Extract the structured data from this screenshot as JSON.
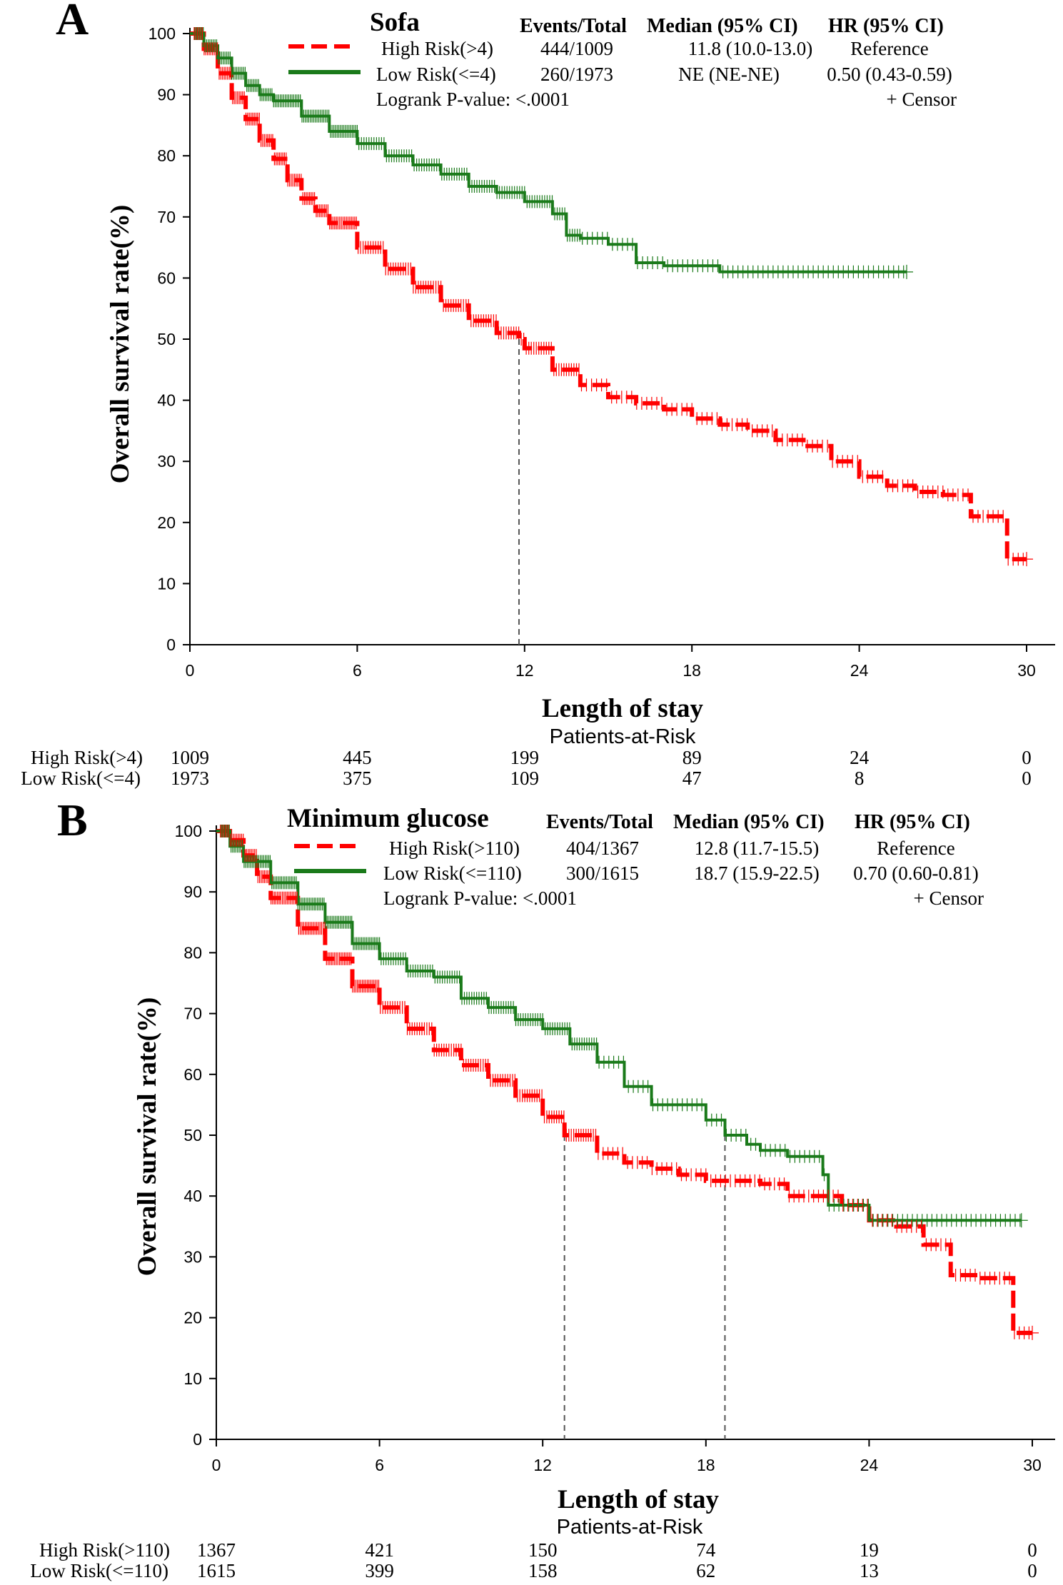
{
  "chart_data": [
    {
      "type": "line",
      "panel_letter": "A",
      "title": "Sofa",
      "xlabel": "Length of stay",
      "ylabel": "Overall survival rate(%)",
      "xlim": [
        0,
        30
      ],
      "ylim": [
        0,
        100
      ],
      "x_ticks": [
        "0",
        "6",
        "12",
        "18",
        "24",
        "30"
      ],
      "y_ticks": [
        "0",
        "10",
        "20",
        "30",
        "40",
        "50",
        "60",
        "70",
        "80",
        "90",
        "100"
      ],
      "legend": {
        "headers": {
          "events": "Events/Total",
          "median": "Median (95% CI)",
          "hr": "HR (95% CI)"
        },
        "logrank": "Logrank P-value: <.0001",
        "censor": "+ Censor"
      },
      "median_lines": [
        11.8
      ],
      "series": [
        {
          "name": "High Risk(>4)",
          "color": "#ff0000",
          "style": "dashed",
          "events_total": "444/1009",
          "median": "11.8 (10.0-13.0)",
          "hr": "Reference",
          "x": [
            0,
            0.5,
            1,
            1.5,
            2,
            2.5,
            3,
            3.5,
            4,
            4.5,
            5,
            6,
            7,
            8,
            9,
            10,
            11,
            11.8,
            12,
            13,
            14,
            15,
            16,
            17,
            18,
            19,
            20,
            21,
            22,
            23,
            24,
            25,
            26,
            27,
            28,
            29,
            29.3,
            30
          ],
          "y": [
            100,
            97.5,
            93.5,
            89.5,
            86,
            82.5,
            79.5,
            76,
            73,
            71,
            69,
            65,
            61.5,
            58.5,
            55.5,
            53,
            51,
            50,
            48.5,
            45,
            42.5,
            40.5,
            39.5,
            38.5,
            37,
            36,
            35,
            33.5,
            32.5,
            30,
            27.5,
            26,
            25,
            24.5,
            21,
            21,
            14,
            14
          ]
        },
        {
          "name": "Low Risk(<=4)",
          "color": "#1a7a1a",
          "style": "solid",
          "events_total": "260/1973",
          "median": "NE (NE-NE)",
          "hr": "0.50 (0.43-0.59)",
          "x": [
            0,
            0.5,
            1,
            1.5,
            2,
            2.5,
            3,
            4,
            5,
            6,
            7,
            8,
            9,
            10,
            11,
            12,
            13,
            13.5,
            14,
            15,
            16,
            17,
            18,
            19,
            20,
            22,
            24,
            25.7
          ],
          "y": [
            100,
            98,
            96,
            93.5,
            91.5,
            90,
            89,
            86.5,
            84,
            82,
            80,
            78.5,
            77,
            75,
            74,
            72.5,
            70.5,
            67,
            66.5,
            65.5,
            62.5,
            62,
            62,
            61,
            61,
            61,
            61,
            61
          ]
        }
      ],
      "at_risk": {
        "title": "Patients-at-Risk",
        "rows": [
          {
            "label": "High Risk(>4)",
            "values": [
              "1009",
              "445",
              "199",
              "89",
              "24",
              "0"
            ]
          },
          {
            "label": "Low Risk(<=4)",
            "values": [
              "1973",
              "375",
              "109",
              "47",
              "8",
              "0"
            ]
          }
        ]
      }
    },
    {
      "type": "line",
      "panel_letter": "B",
      "title": "Minimum glucose",
      "xlabel": "Length of stay",
      "ylabel": "Overall survival rate(%)",
      "xlim": [
        0,
        30
      ],
      "ylim": [
        0,
        100
      ],
      "x_ticks": [
        "0",
        "6",
        "12",
        "18",
        "24",
        "30"
      ],
      "y_ticks": [
        "0",
        "10",
        "20",
        "30",
        "40",
        "50",
        "60",
        "70",
        "80",
        "90",
        "100"
      ],
      "legend": {
        "headers": {
          "events": "Events/Total",
          "median": "Median (95% CI)",
          "hr": "HR (95% CI)"
        },
        "logrank": "Logrank P-value: <.0001",
        "censor": "+ Censor"
      },
      "median_lines": [
        12.8,
        18.7
      ],
      "series": [
        {
          "name": "High Risk(>110)",
          "color": "#ff0000",
          "style": "dashed",
          "events_total": "404/1367",
          "median": "12.8 (11.7-15.5)",
          "hr": "Reference",
          "x": [
            0,
            0.5,
            1,
            1.5,
            2,
            3,
            4,
            5,
            6,
            7,
            8,
            9,
            10,
            11,
            12,
            12.8,
            14,
            15,
            16,
            17,
            18,
            19,
            20,
            21,
            22,
            23,
            24,
            25,
            26,
            27,
            28,
            29,
            29.3,
            30
          ],
          "y": [
            100,
            98.5,
            96,
            92.5,
            89,
            84,
            79,
            74.5,
            71,
            67.5,
            64,
            61.5,
            59,
            56.5,
            53,
            50,
            47,
            45.5,
            44.5,
            43.5,
            42.5,
            42.5,
            42,
            40,
            40,
            38.5,
            36,
            35,
            32,
            27,
            26.5,
            26.5,
            17.5,
            17.5
          ]
        },
        {
          "name": "Low Risk(<=110)",
          "color": "#1a7a1a",
          "style": "solid",
          "events_total": "300/1615",
          "median": "18.7 (15.9-22.5)",
          "hr": "0.70 (0.60-0.81)",
          "x": [
            0,
            0.5,
            1,
            2,
            3,
            4,
            5,
            6,
            7,
            8,
            9,
            10,
            11,
            12,
            13,
            14,
            15,
            16,
            17,
            18,
            18.7,
            19.5,
            20,
            21,
            22,
            22.3,
            22.5,
            23,
            24,
            25,
            26,
            27,
            28,
            29.6
          ],
          "y": [
            100,
            97.5,
            95,
            91.5,
            88,
            85,
            81.5,
            79,
            77,
            76,
            72.5,
            71,
            69,
            67.5,
            65,
            62,
            58,
            55,
            55,
            52.5,
            50,
            48.5,
            47.5,
            46.5,
            46.5,
            43.5,
            38.5,
            38.5,
            36,
            36,
            36,
            36,
            36,
            36
          ]
        }
      ],
      "at_risk": {
        "title": "Patients-at-Risk",
        "rows": [
          {
            "label": "High Risk(>110)",
            "values": [
              "1367",
              "421",
              "150",
              "74",
              "19",
              "0"
            ]
          },
          {
            "label": "Low Risk(<=110)",
            "values": [
              "1615",
              "399",
              "158",
              "62",
              "13",
              "0"
            ]
          }
        ]
      }
    }
  ]
}
